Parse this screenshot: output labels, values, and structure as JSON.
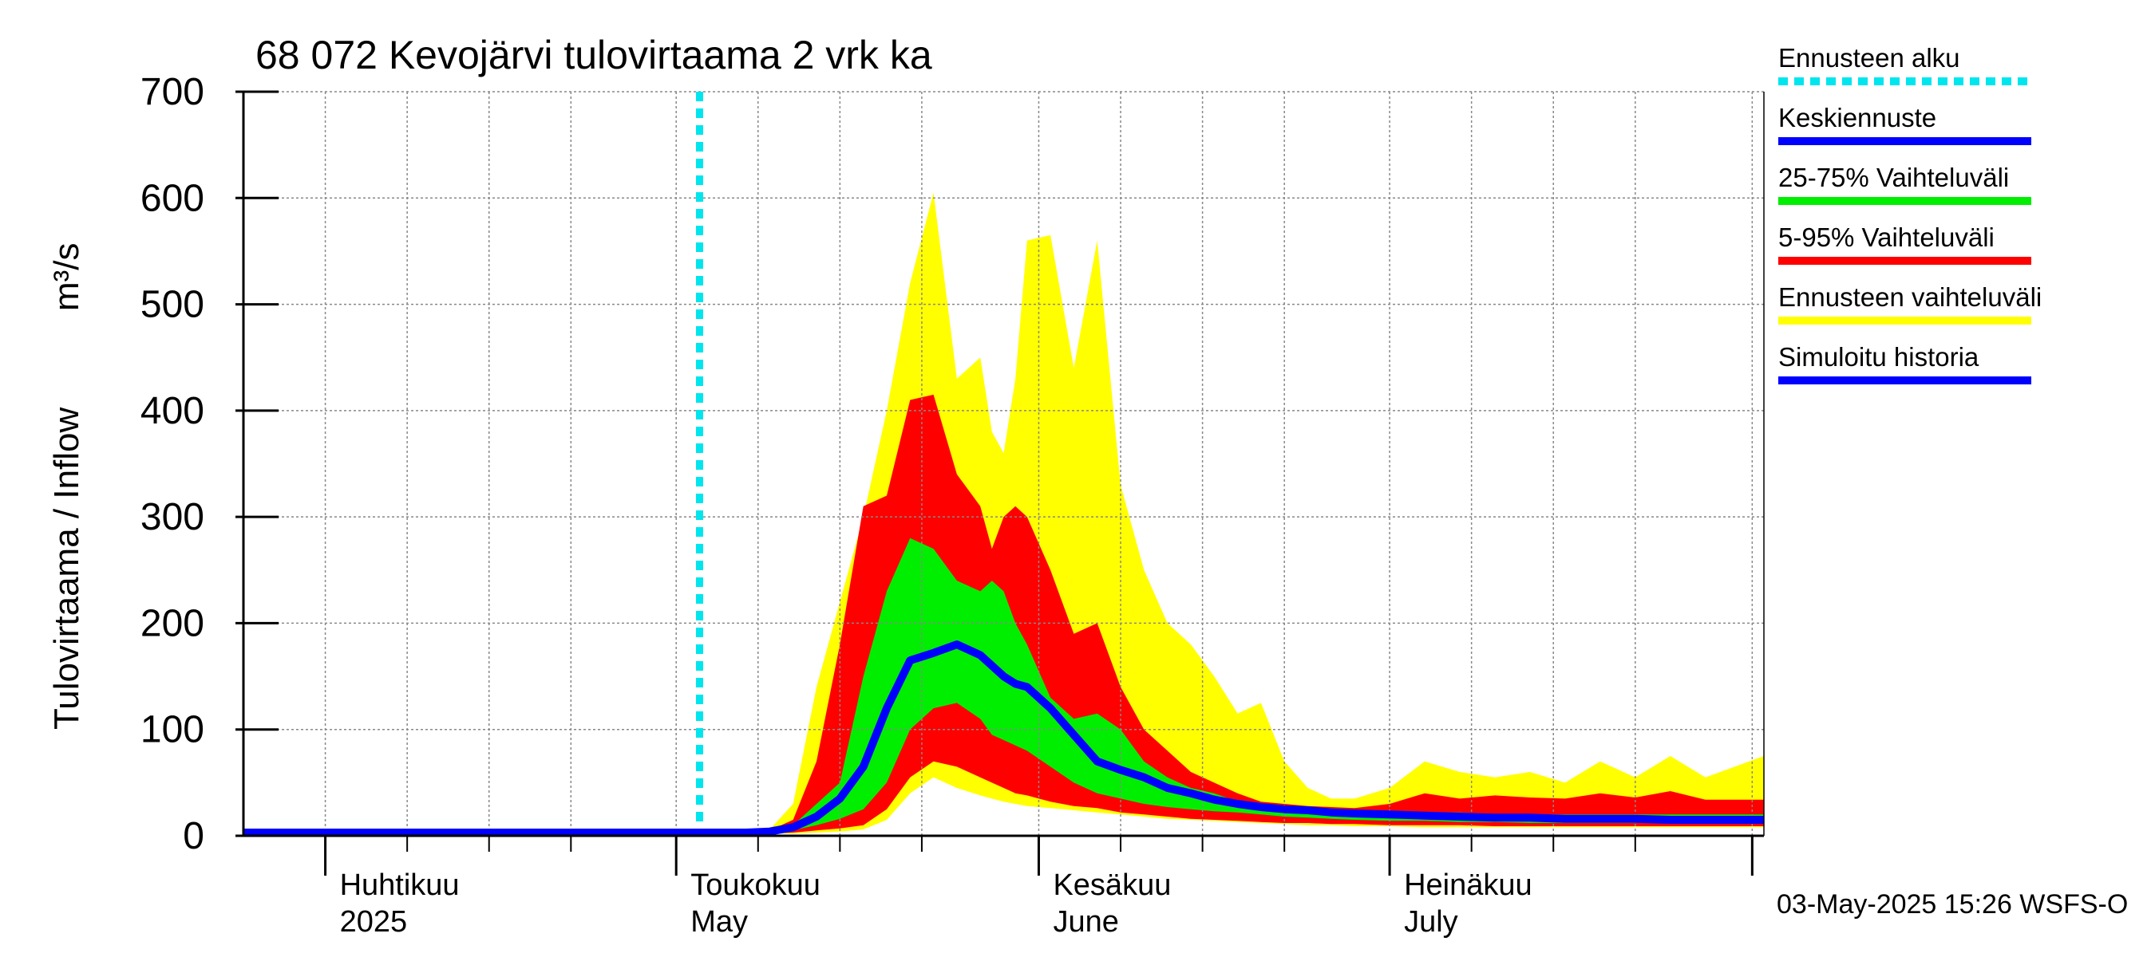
{
  "chart_data": {
    "type": "area",
    "title": "68 072 Kevojärvi tulovirtaama 2 vrk ka",
    "ylabel": "Tulovirtaama / Inflow",
    "yunit": "m³/s",
    "ylim": [
      0,
      700
    ],
    "yticks": [
      0,
      100,
      200,
      300,
      400,
      500,
      600,
      700
    ],
    "xlim": [
      "2025-03-25",
      "2025-08-02"
    ],
    "grid": true,
    "legend_position": "right",
    "forecast_start": "2025-05-03",
    "month_labels": [
      {
        "date": "2025-04-01",
        "fi": "Huhtikuu",
        "en": "2025"
      },
      {
        "date": "2025-05-01",
        "fi": "Toukokuu",
        "en": "May"
      },
      {
        "date": "2025-06-01",
        "fi": "Kesäkuu",
        "en": "June"
      },
      {
        "date": "2025-07-01",
        "fi": "Heinäkuu",
        "en": "July"
      }
    ],
    "footer": "03-May-2025 15:26 WSFS-O",
    "legend": [
      {
        "label": "Ennusteen alku",
        "color": "#00e5ee",
        "style": "dotted"
      },
      {
        "label": "Keskiennuste",
        "color": "#0000ff",
        "style": "solid"
      },
      {
        "label": "25-75% Vaihteluväli",
        "color": "#00ee00",
        "style": "solid"
      },
      {
        "label": "5-95% Vaihteluväli",
        "color": "#ff0000",
        "style": "solid"
      },
      {
        "label": "Ennusteen vaihteluväli",
        "color": "#ffff00",
        "style": "solid"
      },
      {
        "label": "Simuloitu historia",
        "color": "#0000ff",
        "style": "solid"
      }
    ],
    "colors": {
      "forecast_start": "#00e5ee",
      "median": "#0000ff",
      "history": "#0000ff",
      "band_25_75": "#00ee00",
      "band_5_95": "#ff0000",
      "band_total": "#ffff00",
      "grid": "#888888"
    },
    "x": [
      "2025-03-25",
      "2025-04-01",
      "2025-04-15",
      "2025-05-01",
      "2025-05-03",
      "2025-05-05",
      "2025-05-07",
      "2025-05-09",
      "2025-05-11",
      "2025-05-13",
      "2025-05-15",
      "2025-05-17",
      "2025-05-19",
      "2025-05-21",
      "2025-05-23",
      "2025-05-25",
      "2025-05-27",
      "2025-05-28",
      "2025-05-29",
      "2025-05-30",
      "2025-05-31",
      "2025-06-02",
      "2025-06-04",
      "2025-06-06",
      "2025-06-08",
      "2025-06-10",
      "2025-06-12",
      "2025-06-14",
      "2025-06-16",
      "2025-06-18",
      "2025-06-20",
      "2025-06-22",
      "2025-06-24",
      "2025-06-26",
      "2025-06-28",
      "2025-07-01",
      "2025-07-04",
      "2025-07-07",
      "2025-07-10",
      "2025-07-13",
      "2025-07-16",
      "2025-07-19",
      "2025-07-22",
      "2025-07-25",
      "2025-07-28",
      "2025-08-02"
    ],
    "series": [
      {
        "name": "Simuloitu historia",
        "values": [
          3,
          3,
          3,
          3,
          3,
          null,
          null,
          null,
          null,
          null,
          null,
          null,
          null,
          null,
          null,
          null,
          null,
          null,
          null,
          null,
          null,
          null,
          null,
          null,
          null,
          null,
          null,
          null,
          null,
          null,
          null,
          null,
          null,
          null,
          null,
          null,
          null,
          null,
          null,
          null,
          null,
          null,
          null,
          null,
          null,
          null
        ]
      },
      {
        "name": "Keskiennuste",
        "values": [
          null,
          null,
          null,
          null,
          3,
          3,
          3,
          4,
          8,
          18,
          35,
          65,
          120,
          165,
          172,
          180,
          170,
          160,
          150,
          143,
          140,
          120,
          95,
          70,
          62,
          55,
          45,
          40,
          34,
          30,
          27,
          25,
          24,
          22,
          21,
          20,
          19,
          18,
          17,
          17,
          16,
          16,
          16,
          15,
          15,
          15
        ]
      },
      {
        "name": "Ennusteen vaihteluväli max",
        "values": [
          null,
          null,
          null,
          null,
          3,
          3,
          3,
          6,
          30,
          140,
          220,
          300,
          400,
          520,
          605,
          430,
          450,
          380,
          360,
          430,
          560,
          565,
          440,
          560,
          330,
          250,
          200,
          180,
          150,
          115,
          125,
          70,
          45,
          35,
          35,
          45,
          70,
          60,
          55,
          60,
          50,
          70,
          55,
          75,
          55,
          75
        ]
      },
      {
        "name": "95%",
        "values": [
          null,
          null,
          null,
          null,
          3,
          3,
          3,
          5,
          15,
          70,
          180,
          310,
          320,
          410,
          415,
          340,
          310,
          270,
          300,
          310,
          300,
          250,
          190,
          200,
          140,
          100,
          80,
          60,
          50,
          40,
          32,
          30,
          28,
          27,
          26,
          30,
          40,
          35,
          38,
          36,
          35,
          40,
          36,
          42,
          34,
          34
        ]
      },
      {
        "name": "75%",
        "values": [
          null,
          null,
          null,
          null,
          3,
          3,
          3,
          4,
          10,
          30,
          50,
          150,
          230,
          280,
          270,
          240,
          230,
          240,
          230,
          200,
          180,
          130,
          110,
          115,
          100,
          70,
          55,
          45,
          40,
          32,
          30,
          28,
          26,
          24,
          22,
          22,
          22,
          22,
          20,
          20,
          20,
          20,
          20,
          20,
          20,
          20
        ]
      },
      {
        "name": "25%",
        "values": [
          null,
          null,
          null,
          null,
          3,
          3,
          3,
          3,
          5,
          10,
          16,
          25,
          50,
          100,
          120,
          125,
          110,
          95,
          90,
          85,
          80,
          65,
          50,
          40,
          35,
          30,
          27,
          25,
          23,
          22,
          20,
          18,
          17,
          16,
          15,
          14,
          14,
          13,
          13,
          12,
          12,
          12,
          12,
          12,
          12,
          12
        ]
      },
      {
        "name": "5%",
        "values": [
          null,
          null,
          null,
          null,
          3,
          3,
          3,
          2,
          3,
          5,
          7,
          10,
          25,
          55,
          70,
          65,
          55,
          50,
          45,
          40,
          38,
          32,
          28,
          26,
          22,
          20,
          18,
          16,
          15,
          14,
          13,
          12,
          12,
          11,
          11,
          10,
          10,
          10,
          9,
          9,
          9,
          9,
          9,
          9,
          9,
          9
        ]
      },
      {
        "name": "Ennusteen vaihteluväli min",
        "values": [
          null,
          null,
          null,
          null,
          3,
          3,
          3,
          2,
          2,
          3,
          4,
          6,
          15,
          40,
          55,
          45,
          38,
          35,
          32,
          30,
          28,
          26,
          24,
          22,
          20,
          18,
          16,
          15,
          14,
          13,
          12,
          11,
          10,
          10,
          9,
          9,
          8,
          8,
          8,
          8,
          8,
          8,
          8,
          8,
          8,
          8
        ]
      }
    ]
  }
}
